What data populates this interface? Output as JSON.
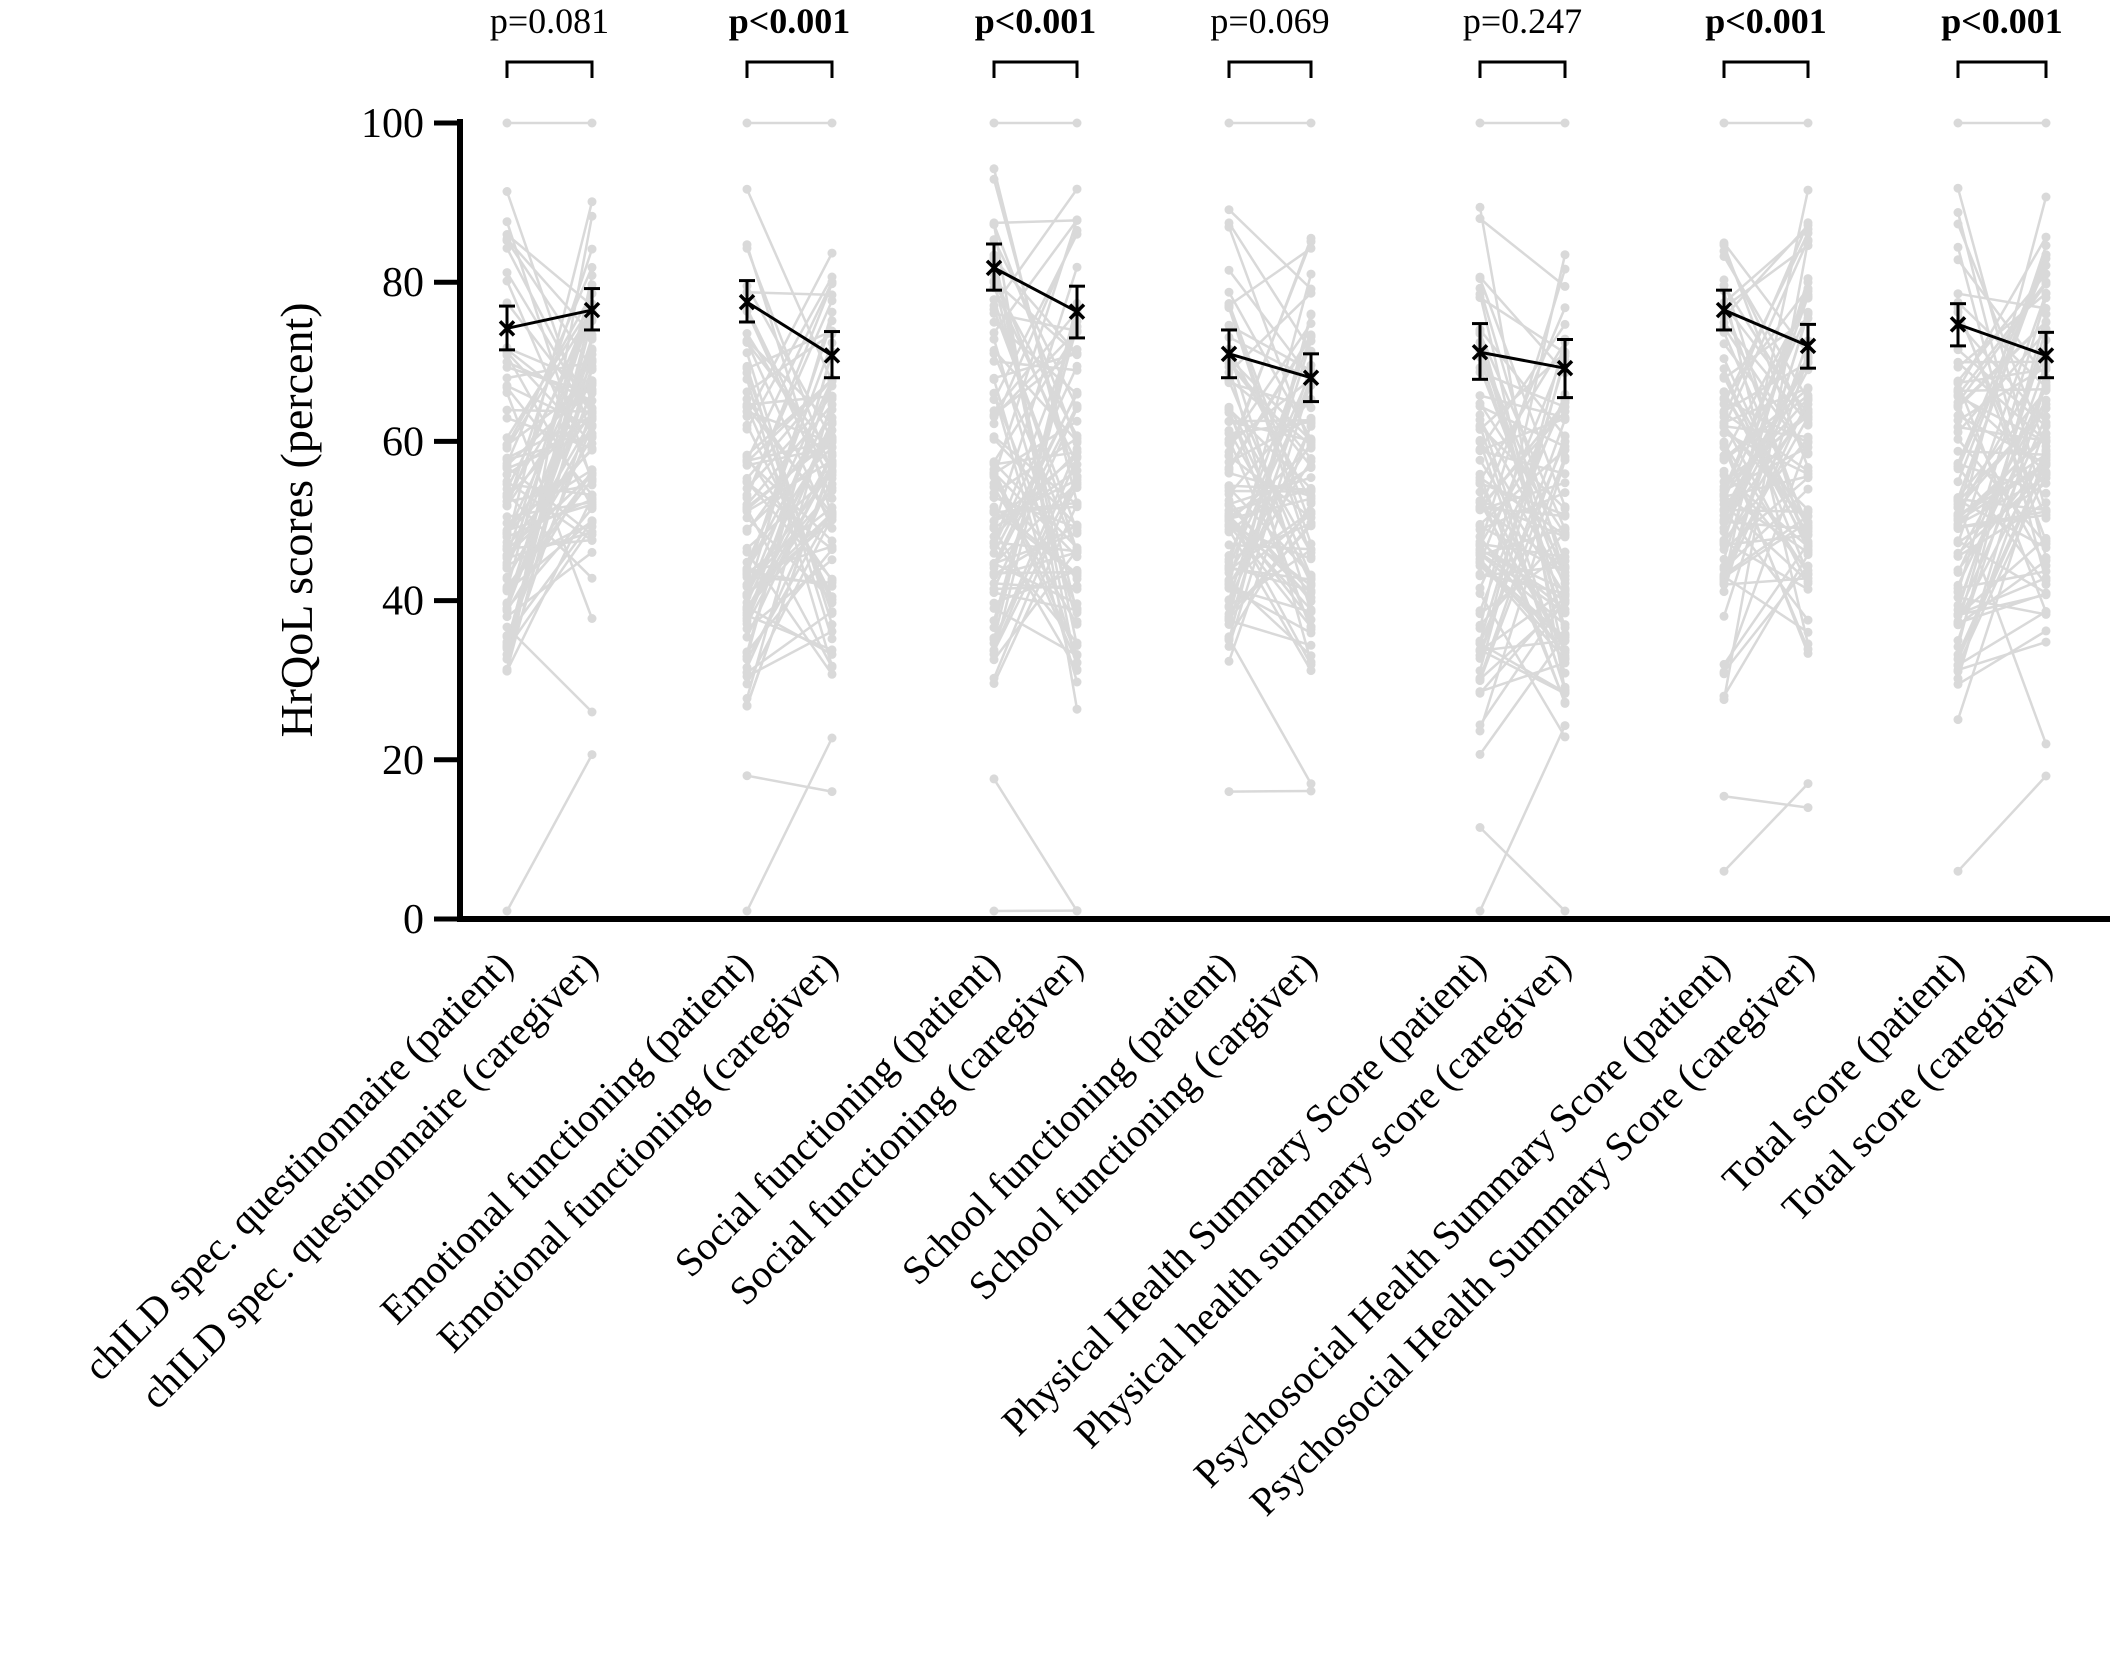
{
  "chart_data": {
    "type": "line",
    "title": "",
    "ylabel": "HrQoL scores (percent)",
    "ylim": [
      0,
      100
    ],
    "yticks": [
      0,
      20,
      40,
      60,
      80,
      100
    ],
    "categories": [
      "chILD spec. questinonnaire (patient)",
      "chILD spec. questinonnaire (caregiver)",
      "Emotional functioning (patient)",
      "Emotional functioning (caregiver)",
      "Social functioning (patient)",
      "Social functioning (caregiver)",
      "School functioning (patient)",
      "School functioning (cargiver)",
      "Physical Health Summary Score (patient)",
      "Physical health summary score (caregiver)",
      "Psychosocial Health Summary Score (patient)",
      "Psychosocial Health Summary Score (caregiver)",
      "Total score (patient)",
      "Total score (caregiver)"
    ],
    "pairs": [
      {
        "p_value": "p=0.081",
        "significant": false,
        "mean": [
          74.2,
          76.5
        ],
        "ci_low": [
          71.5,
          74.0
        ],
        "ci_high": [
          77.0,
          79.2
        ],
        "individual_min": [
          1,
          26
        ],
        "individual_max": [
          100,
          100
        ]
      },
      {
        "p_value": "p<0.001",
        "significant": true,
        "mean": [
          77.5,
          70.8
        ],
        "ci_low": [
          75.0,
          68.0
        ],
        "ci_high": [
          80.2,
          73.8
        ],
        "individual_min": [
          1,
          16
        ],
        "individual_max": [
          100,
          100
        ]
      },
      {
        "p_value": "p<0.001",
        "significant": true,
        "mean": [
          81.8,
          76.3
        ],
        "ci_low": [
          79.0,
          73.0
        ],
        "ci_high": [
          84.8,
          79.5
        ],
        "individual_min": [
          1,
          1
        ],
        "individual_max": [
          100,
          100
        ]
      },
      {
        "p_value": "p=0.069",
        "significant": false,
        "mean": [
          71.0,
          68.0
        ],
        "ci_low": [
          68.0,
          65.0
        ],
        "ci_high": [
          74.0,
          71.0
        ],
        "individual_min": [
          16,
          17
        ],
        "individual_max": [
          100,
          100
        ]
      },
      {
        "p_value": "p=0.247",
        "significant": false,
        "mean": [
          71.2,
          69.2
        ],
        "ci_low": [
          67.8,
          65.5
        ],
        "ci_high": [
          74.8,
          72.8
        ],
        "individual_min": [
          1,
          1
        ],
        "individual_max": [
          100,
          100
        ]
      },
      {
        "p_value": "p<0.001",
        "significant": true,
        "mean": [
          76.5,
          72.0
        ],
        "ci_low": [
          74.0,
          69.2
        ],
        "ci_high": [
          79.0,
          74.7
        ],
        "individual_min": [
          6,
          14
        ],
        "individual_max": [
          100,
          100
        ]
      },
      {
        "p_value": "p<0.001",
        "significant": true,
        "mean": [
          74.7,
          70.8
        ],
        "ci_low": [
          72.0,
          68.0
        ],
        "ci_high": [
          77.3,
          73.7
        ],
        "individual_min": [
          6,
          22
        ],
        "individual_max": [
          100,
          100
        ]
      }
    ],
    "grid": false,
    "legend": "none",
    "colors": {
      "individual_lines": "#d9d9d9",
      "mean_line": "#000000",
      "axis": "#000000"
    }
  }
}
